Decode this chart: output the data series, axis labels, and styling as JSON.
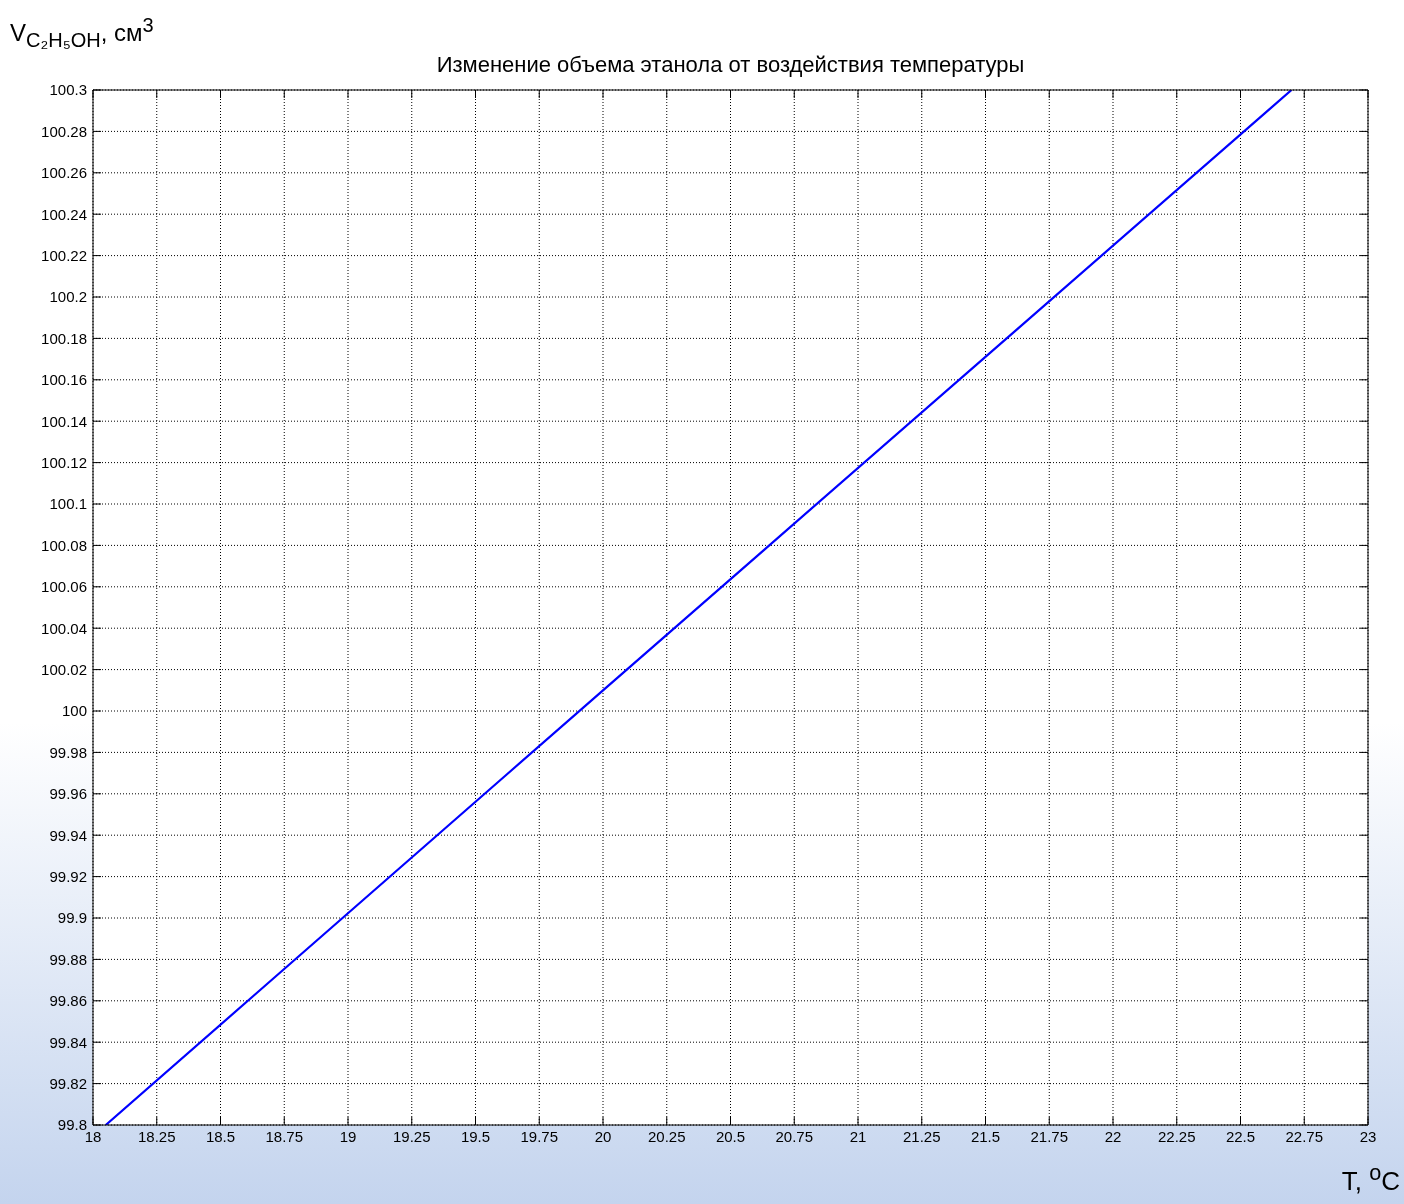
{
  "chart_data": {
    "type": "line",
    "title": "Изменение объема этанола от воздействия температуры",
    "xlabel": "T, $^{o}$C",
    "ylabel": "V$_{C₂H₅OH}$, см$^{3}$",
    "series": [
      {
        "color": "#0000ff",
        "x": [
          18.05,
          20,
          22.7
        ],
        "values": [
          99.8,
          100.01,
          100.3
        ]
      }
    ],
    "xlim": [
      18,
      23
    ],
    "xticks": [
      18,
      18.25,
      18.5,
      18.75,
      19,
      19.25,
      19.5,
      19.75,
      20,
      20.25,
      20.5,
      20.75,
      21,
      21.25,
      21.5,
      21.75,
      22,
      22.25,
      22.5,
      22.75,
      23
    ],
    "ylim": [
      99.8,
      100.3
    ],
    "yticks": [
      99.8,
      99.82,
      99.84,
      99.86,
      99.88,
      99.9,
      99.92,
      99.94,
      99.96,
      99.98,
      100,
      100.02,
      100.04,
      100.06,
      100.08,
      100.1,
      100.12,
      100.14,
      100.16,
      100.18,
      100.2,
      100.22,
      100.24,
      100.26,
      100.28,
      100.3
    ],
    "grid": true
  }
}
